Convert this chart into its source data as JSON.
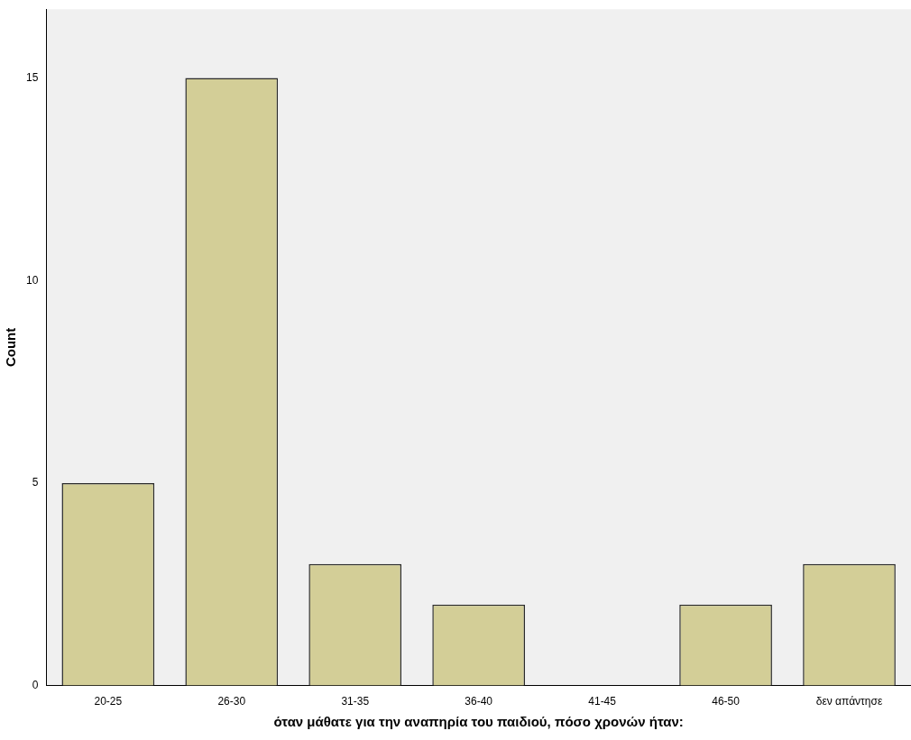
{
  "chart_data": {
    "type": "bar",
    "xlabel": "όταν μάθατε για την αναπηρία του παιδιού, πόσο χρονών ήταν:",
    "ylabel": "Count",
    "categories": [
      "20-25",
      "26-30",
      "31-35",
      "36-40",
      "41-45",
      "46-50",
      "δεν απάντησε"
    ],
    "values": [
      5,
      15,
      3,
      2,
      0,
      2,
      3
    ],
    "color": "#d3ce97",
    "ylim": [
      0,
      16.7
    ],
    "yticks": [
      0,
      5,
      10,
      15
    ],
    "grid": false,
    "legend": false
  }
}
